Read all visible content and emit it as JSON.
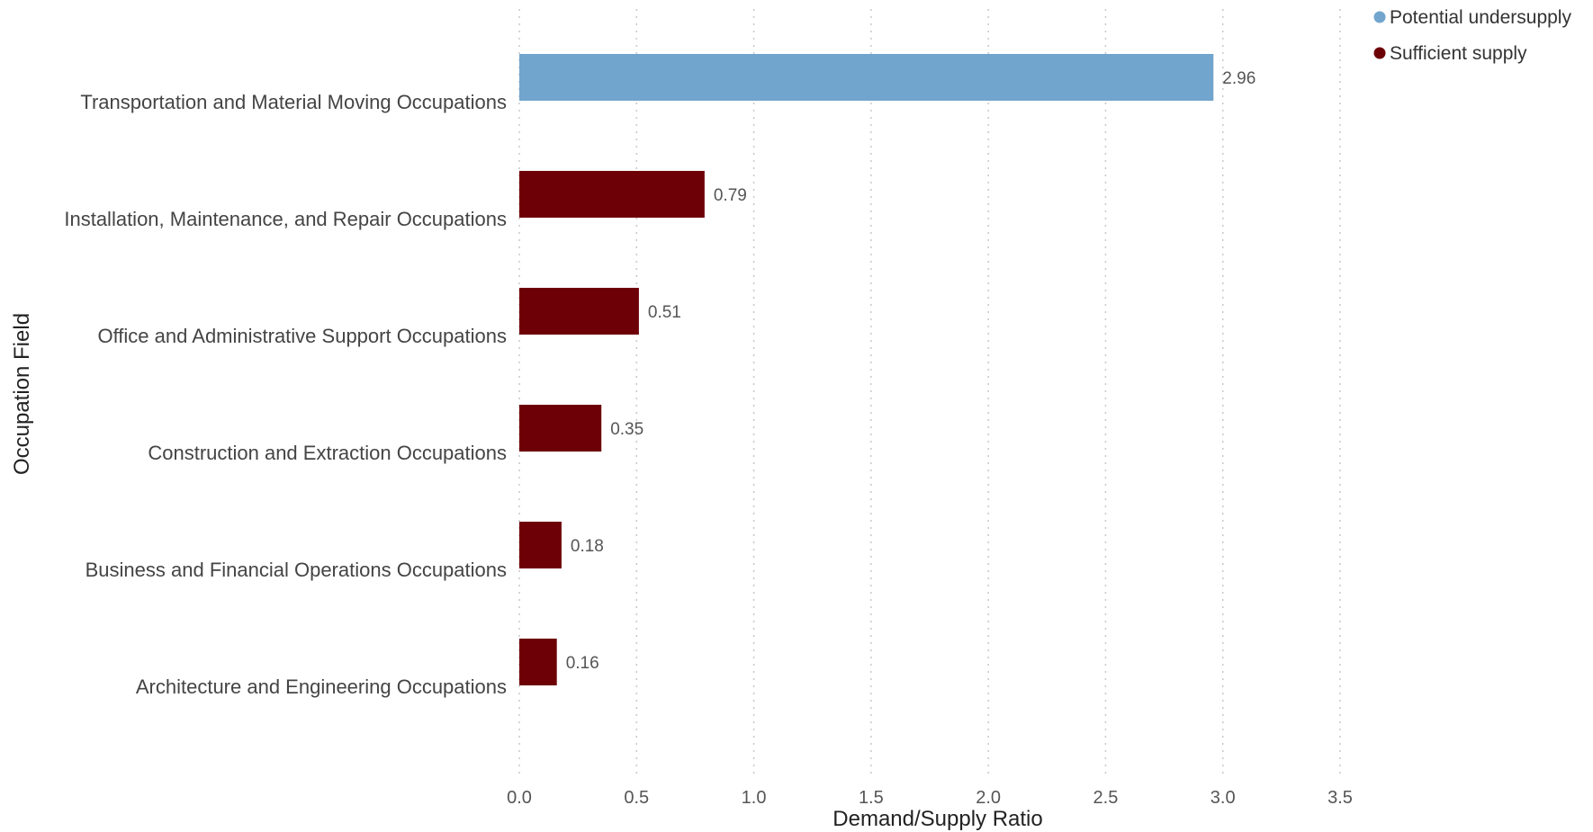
{
  "chart_data": {
    "type": "bar",
    "orientation": "horizontal",
    "title": "",
    "xlabel": "Demand/Supply Ratio",
    "ylabel": "Occupation Field",
    "xlim": [
      0,
      3.5
    ],
    "xticks": [
      "0.0",
      "0.5",
      "1.0",
      "1.5",
      "2.0",
      "2.5",
      "3.0",
      "3.5"
    ],
    "grid": "vertical-dotted",
    "legend_position": "top-right",
    "colors": {
      "Potential undersupply": "#71a5cd",
      "Sufficient supply": "#6d0007"
    },
    "legend": [
      {
        "name": "Potential undersupply",
        "color": "#71a5cd"
      },
      {
        "name": "Sufficient supply",
        "color": "#6d0007"
      }
    ],
    "categories": [
      "Transportation and Material Moving Occupations",
      "Installation, Maintenance, and Repair Occupations",
      "Office and Administrative Support Occupations",
      "Construction and Extraction Occupations",
      "Business and Financial Operations Occupations",
      "Architecture and Engineering Occupations"
    ],
    "values": [
      2.96,
      0.79,
      0.51,
      0.35,
      0.18,
      0.16
    ],
    "value_labels": [
      "2.96",
      "0.79",
      "0.51",
      "0.35",
      "0.18",
      "0.16"
    ],
    "groups": [
      "Potential undersupply",
      "Sufficient supply",
      "Sufficient supply",
      "Sufficient supply",
      "Sufficient supply",
      "Sufficient supply"
    ]
  }
}
